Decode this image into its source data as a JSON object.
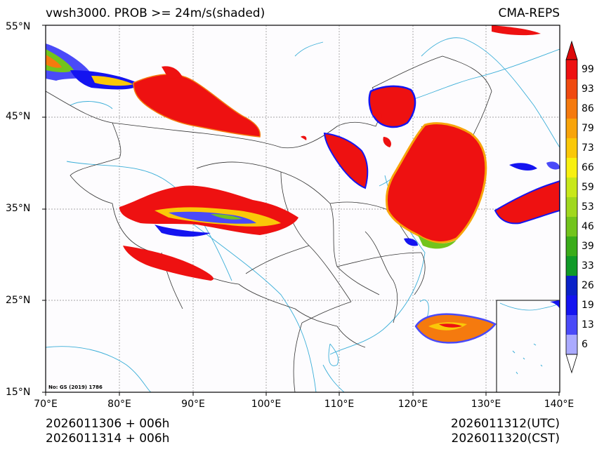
{
  "title": {
    "left": "vwsh3000. PROB >= 24m/s(shaded)",
    "right": "CMA-REPS"
  },
  "axes": {
    "lat_labels": [
      "55°N",
      "45°N",
      "35°N",
      "25°N",
      "15°N"
    ],
    "lon_labels": [
      "70°E",
      "80°E",
      "90°E",
      "100°E",
      "110°E",
      "120°E",
      "130°E",
      "140°E"
    ]
  },
  "map_note": "No: GS (2019) 1786",
  "footer": {
    "init_utc": "2026011306  +  006h",
    "init_cst": "2026011314  +  006h",
    "valid_utc": "2026011312(UTC)",
    "valid_cst": "2026011320(CST)"
  },
  "colorbar": {
    "labels": [
      "99",
      "93",
      "86",
      "79",
      "73",
      "66",
      "59",
      "53",
      "46",
      "39",
      "33",
      "26",
      "19",
      "13",
      "6"
    ],
    "colors": [
      "#ee1111",
      "#f04a10",
      "#f57a0e",
      "#f8a40a",
      "#fac808",
      "#f8f010",
      "#c8e81a",
      "#a0d81e",
      "#72c41c",
      "#3aac1a",
      "#109a28",
      "#0a22c8",
      "#1414f0",
      "#4a4af8",
      "#aaaaff"
    ]
  },
  "colors": {
    "coast": "#3aaed8",
    "border": "#333333",
    "grid": "#888888"
  }
}
